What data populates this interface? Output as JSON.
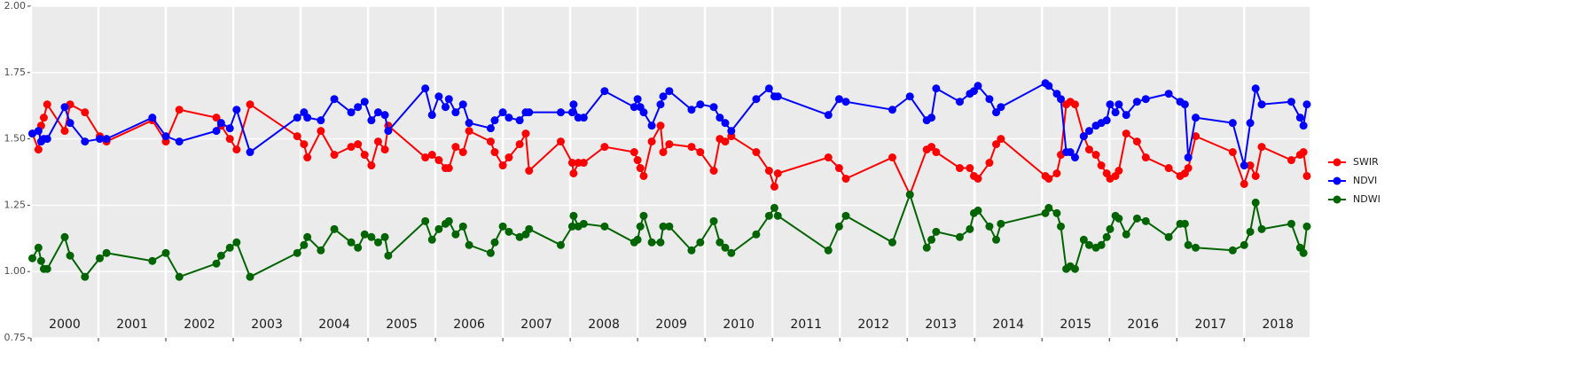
{
  "chart_data": {
    "type": "line",
    "x": [
      2000.02,
      2000.11,
      2000.15,
      2000.19,
      2000.24,
      2000.5,
      2000.58,
      2000.8,
      2001.02,
      2001.12,
      2001.8,
      2002.0,
      2002.2,
      2002.75,
      2002.82,
      2002.95,
      2003.05,
      2003.25,
      2003.95,
      2004.05,
      2004.1,
      2004.3,
      2004.5,
      2004.75,
      2004.85,
      2004.95,
      2005.05,
      2005.15,
      2005.25,
      2005.3,
      2005.85,
      2005.95,
      2006.05,
      2006.15,
      2006.2,
      2006.3,
      2006.41,
      2006.5,
      2006.82,
      2006.88,
      2007.0,
      2007.09,
      2007.25,
      2007.34,
      2007.39,
      2007.86,
      2008.03,
      2008.05,
      2008.12,
      2008.2,
      2008.51,
      2008.95,
      2009.0,
      2009.04,
      2009.09,
      2009.21,
      2009.34,
      2009.38,
      2009.47,
      2009.8,
      2009.93,
      2010.13,
      2010.22,
      2010.3,
      2010.39,
      2010.76,
      2010.95,
      2011.03,
      2011.08,
      2011.83,
      2011.99,
      2012.09,
      2012.78,
      2013.04,
      2013.29,
      2013.36,
      2013.43,
      2013.78,
      2013.93,
      2013.99,
      2014.05,
      2014.22,
      2014.32,
      2014.39,
      2015.05,
      2015.1,
      2015.22,
      2015.28,
      2015.36,
      2015.42,
      2015.49,
      2015.62,
      2015.7,
      2015.8,
      2015.88,
      2015.96,
      2016.01,
      2016.09,
      2016.14,
      2016.25,
      2016.41,
      2016.54,
      2016.88,
      2017.05,
      2017.12,
      2017.17,
      2017.28,
      2017.83,
      2018.0,
      2018.09,
      2018.17,
      2018.26,
      2018.7,
      2018.83,
      2018.88,
      2018.93
    ],
    "series": [
      {
        "name": "SWIR",
        "color": "#ff0000",
        "values": [
          1.52,
          1.46,
          1.55,
          1.58,
          1.63,
          1.53,
          1.63,
          1.6,
          1.51,
          1.49,
          1.57,
          1.49,
          1.61,
          1.58,
          1.55,
          1.5,
          1.46,
          1.63,
          1.51,
          1.48,
          1.43,
          1.53,
          1.44,
          1.47,
          1.48,
          1.44,
          1.4,
          1.49,
          1.46,
          1.55,
          1.43,
          1.44,
          1.42,
          1.39,
          1.39,
          1.47,
          1.45,
          1.53,
          1.49,
          1.45,
          1.4,
          1.43,
          1.48,
          1.52,
          1.38,
          1.49,
          1.41,
          1.37,
          1.41,
          1.41,
          1.47,
          1.45,
          1.42,
          1.39,
          1.36,
          1.49,
          1.55,
          1.45,
          1.48,
          1.47,
          1.45,
          1.38,
          1.5,
          1.49,
          1.51,
          1.45,
          1.38,
          1.32,
          1.37,
          1.43,
          1.39,
          1.35,
          1.43,
          1.29,
          1.46,
          1.47,
          1.45,
          1.39,
          1.39,
          1.36,
          1.35,
          1.41,
          1.48,
          1.5,
          1.36,
          1.35,
          1.37,
          1.44,
          1.63,
          1.64,
          1.63,
          1.51,
          1.46,
          1.44,
          1.4,
          1.37,
          1.35,
          1.36,
          1.38,
          1.52,
          1.49,
          1.43,
          1.39,
          1.36,
          1.37,
          1.39,
          1.51,
          1.45,
          1.33,
          1.4,
          1.36,
          1.47,
          1.42,
          1.44,
          1.45,
          1.36
        ]
      },
      {
        "name": "NDVI",
        "color": "#0000ff",
        "values": [
          1.52,
          1.53,
          1.49,
          1.5,
          1.5,
          1.62,
          1.56,
          1.49,
          1.5,
          1.5,
          1.58,
          1.51,
          1.49,
          1.53,
          1.56,
          1.54,
          1.61,
          1.45,
          1.58,
          1.6,
          1.58,
          1.57,
          1.65,
          1.6,
          1.62,
          1.64,
          1.57,
          1.6,
          1.59,
          1.53,
          1.69,
          1.59,
          1.66,
          1.62,
          1.65,
          1.6,
          1.63,
          1.56,
          1.54,
          1.57,
          1.6,
          1.58,
          1.57,
          1.6,
          1.6,
          1.6,
          1.6,
          1.63,
          1.58,
          1.58,
          1.68,
          1.62,
          1.65,
          1.62,
          1.6,
          1.55,
          1.63,
          1.66,
          1.68,
          1.61,
          1.63,
          1.62,
          1.58,
          1.56,
          1.53,
          1.65,
          1.69,
          1.66,
          1.66,
          1.59,
          1.65,
          1.64,
          1.61,
          1.66,
          1.57,
          1.58,
          1.69,
          1.64,
          1.67,
          1.68,
          1.7,
          1.65,
          1.6,
          1.62,
          1.71,
          1.7,
          1.67,
          1.65,
          1.45,
          1.45,
          1.43,
          1.51,
          1.53,
          1.55,
          1.56,
          1.57,
          1.63,
          1.6,
          1.63,
          1.59,
          1.64,
          1.65,
          1.67,
          1.64,
          1.63,
          1.43,
          1.58,
          1.56,
          1.4,
          1.56,
          1.69,
          1.63,
          1.64,
          1.58,
          1.55,
          1.63
        ]
      },
      {
        "name": "NDWI",
        "color": "#006400",
        "values": [
          1.05,
          1.09,
          1.04,
          1.01,
          1.01,
          1.13,
          1.06,
          0.98,
          1.05,
          1.07,
          1.04,
          1.07,
          0.98,
          1.03,
          1.06,
          1.09,
          1.11,
          0.98,
          1.07,
          1.1,
          1.13,
          1.08,
          1.16,
          1.11,
          1.09,
          1.14,
          1.13,
          1.11,
          1.13,
          1.06,
          1.19,
          1.12,
          1.16,
          1.18,
          1.19,
          1.14,
          1.17,
          1.1,
          1.07,
          1.11,
          1.17,
          1.15,
          1.13,
          1.14,
          1.16,
          1.1,
          1.17,
          1.21,
          1.17,
          1.18,
          1.17,
          1.11,
          1.12,
          1.17,
          1.21,
          1.11,
          1.11,
          1.17,
          1.17,
          1.08,
          1.11,
          1.19,
          1.11,
          1.09,
          1.07,
          1.14,
          1.21,
          1.24,
          1.21,
          1.08,
          1.17,
          1.21,
          1.11,
          1.29,
          1.09,
          1.12,
          1.15,
          1.13,
          1.16,
          1.22,
          1.23,
          1.17,
          1.12,
          1.18,
          1.22,
          1.24,
          1.22,
          1.17,
          1.01,
          1.02,
          1.01,
          1.12,
          1.1,
          1.09,
          1.1,
          1.13,
          1.16,
          1.21,
          1.2,
          1.14,
          1.2,
          1.19,
          1.13,
          1.18,
          1.18,
          1.1,
          1.09,
          1.08,
          1.1,
          1.15,
          1.26,
          1.16,
          1.18,
          1.09,
          1.07,
          1.17
        ]
      }
    ],
    "xlim": [
      2000,
      2018.97
    ],
    "xticks": [
      2000,
      2001,
      2002,
      2003,
      2004,
      2005,
      2006,
      2007,
      2008,
      2009,
      2010,
      2011,
      2012,
      2013,
      2014,
      2015,
      2016,
      2017,
      2018
    ],
    "ylim": [
      0.75,
      2.0
    ],
    "yticks": [
      {
        "value": 0.75,
        "label": "0.75"
      },
      {
        "value": 1.0,
        "label": "1.00"
      },
      {
        "value": 1.25,
        "label": "1.25"
      },
      {
        "value": 1.5,
        "label": "1.50"
      },
      {
        "value": 1.75,
        "label": "1.75"
      },
      {
        "value": 2.0,
        "label": "2.00"
      }
    ],
    "grid": true,
    "legend": "right"
  }
}
